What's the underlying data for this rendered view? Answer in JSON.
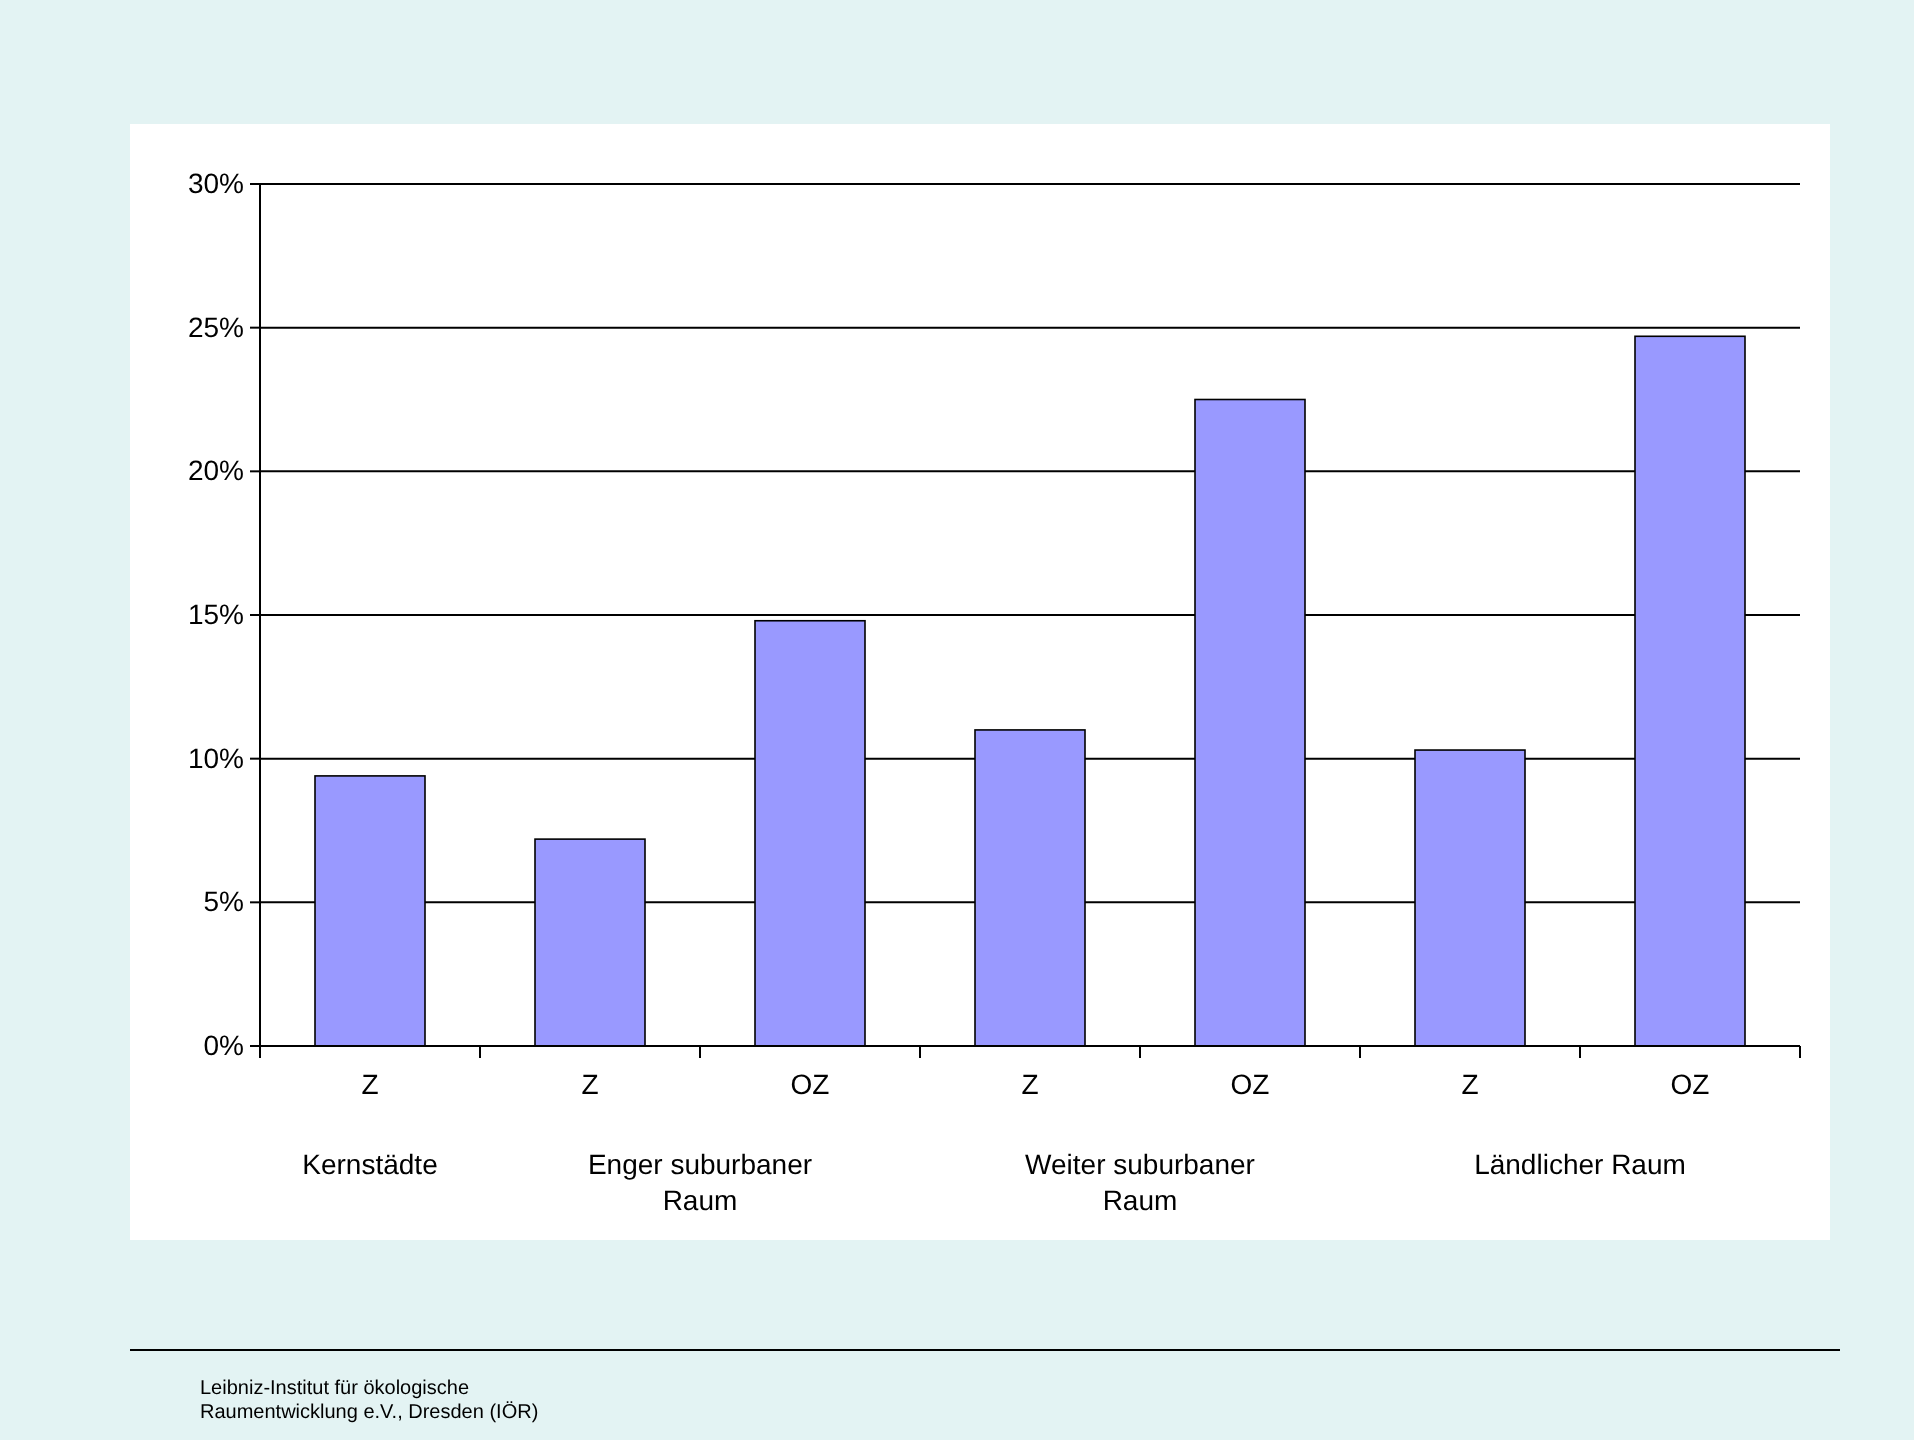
{
  "chart_data": {
    "type": "bar",
    "categories": [
      "Z",
      "Z",
      "OZ",
      "Z",
      "OZ",
      "Z",
      "OZ"
    ],
    "values": [
      9.4,
      7.2,
      14.8,
      11.0,
      22.5,
      10.3,
      24.7
    ],
    "color": "#9999ff",
    "ylim": [
      0,
      30
    ],
    "yticks": [
      {
        "value": 0,
        "label": "0%"
      },
      {
        "value": 5,
        "label": "5%"
      },
      {
        "value": 10,
        "label": "10%"
      },
      {
        "value": 15,
        "label": "15%"
      },
      {
        "value": 20,
        "label": "20%"
      },
      {
        "value": 25,
        "label": "25%"
      },
      {
        "value": 30,
        "label": "30%"
      }
    ],
    "grid": "y",
    "annotations": [
      "Kernstädte",
      "Enger suburbaner Raum",
      "Weiter suburbaner Raum",
      "Ländlicher Raum",
      "Leibniz-Institut für ökologische Raumentwicklung e.V., Dresden (IÖR)"
    ]
  }
}
